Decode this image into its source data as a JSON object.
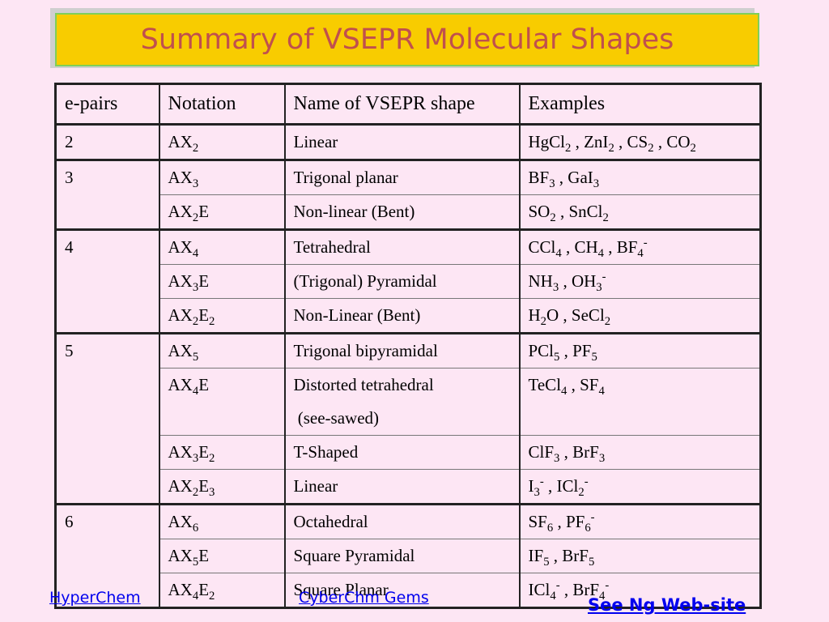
{
  "title": "Summary of VSEPR Molecular Shapes",
  "headers": [
    "e-pairs",
    "Notation",
    "Name of VSEPR shape",
    "Examples"
  ],
  "rows": [
    {
      "epairs": "2",
      "notation": "AX<sub>2</sub>",
      "shape": "Linear",
      "examples": "HgCl<sub>2</sub> , ZnI<sub>2</sub> , CS<sub>2</sub> , CO<sub>2</sub>"
    },
    {
      "epairs": "3",
      "notation": "AX<sub>3</sub>",
      "shape": "Trigonal planar",
      "examples": "BF<sub>3</sub> , GaI<sub>3</sub>"
    },
    {
      "epairs": "",
      "notation": "AX<sub>2</sub>E",
      "shape": "Non-linear (Bent)",
      "examples": "SO<sub>2</sub> , SnCl<sub>2</sub>"
    },
    {
      "epairs": "4",
      "notation": "AX<sub>4</sub>",
      "shape": "Tetrahedral",
      "examples": "CCl<sub>4</sub> , CH<sub>4</sub> , BF<sub>4</sub><sup>-</sup>"
    },
    {
      "epairs": "",
      "notation": "AX<sub>3</sub>E",
      "shape": "(Trigonal) Pyramidal",
      "examples": "NH<sub>3</sub> , OH<sub>3</sub><sup>-</sup>"
    },
    {
      "epairs": "",
      "notation": "AX<sub>2</sub>E<sub>2</sub>",
      "shape": "Non-Linear (Bent)",
      "examples": "H<sub>2</sub>O , SeCl<sub>2</sub>"
    },
    {
      "epairs": "5",
      "notation": "AX<sub>5</sub>",
      "shape": "Trigonal bipyramidal",
      "examples": "PCl<sub>5</sub> , PF<sub>5</sub>"
    },
    {
      "epairs": "",
      "notation": "AX<sub>4</sub>E",
      "shape": "Distorted tetrahedral",
      "shape_line2": "(see-sawed)",
      "examples": "TeCl<sub>4</sub> , SF<sub>4</sub>"
    },
    {
      "epairs": "",
      "notation": "AX<sub>3</sub>E<sub>2</sub>",
      "shape": "T-Shaped",
      "examples": "ClF<sub>3</sub> , BrF<sub>3</sub>"
    },
    {
      "epairs": "",
      "notation": "AX<sub>2</sub>E<sub>3</sub>",
      "shape": "Linear",
      "examples": "I<sub>3</sub><sup>-</sup> , ICl<sub>2</sub><sup>-</sup>"
    },
    {
      "epairs": "6",
      "notation": "AX<sub>6</sub>",
      "shape": "Octahedral",
      "examples": "SF<sub>6</sub> , PF<sub>6</sub><sup>-</sup>"
    },
    {
      "epairs": "",
      "notation": "AX<sub>5</sub>E",
      "shape": "Square Pyramidal",
      "examples": "IF<sub>5</sub> , BrF<sub>5</sub>"
    },
    {
      "epairs": "",
      "notation": "AX<sub>4</sub>E<sub>2</sub>",
      "shape": "Square Planar",
      "examples": "ICl<sub>4</sub><sup>-</sup> , BrF<sub>4</sub><sup>-</sup>"
    }
  ],
  "links": {
    "hyperchem": "HyperChem",
    "cyberchm": "CyberChm Gems",
    "ng": "See Ng Web-site"
  }
}
